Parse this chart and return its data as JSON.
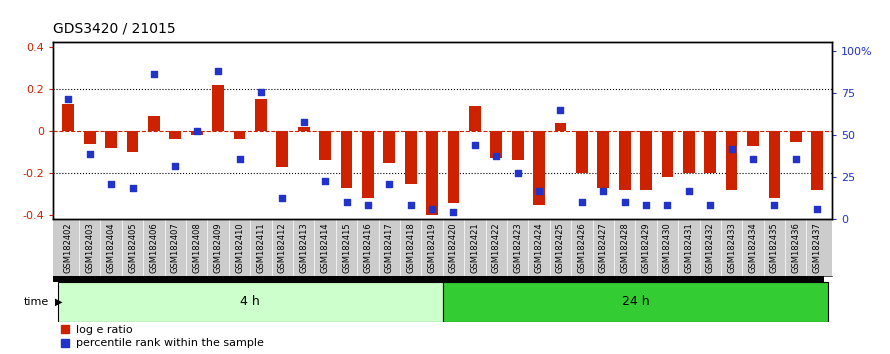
{
  "title": "GDS3420 / 21015",
  "samples": [
    "GSM182402",
    "GSM182403",
    "GSM182404",
    "GSM182405",
    "GSM182406",
    "GSM182407",
    "GSM182408",
    "GSM182409",
    "GSM182410",
    "GSM182411",
    "GSM182412",
    "GSM182413",
    "GSM182414",
    "GSM182415",
    "GSM182416",
    "GSM182417",
    "GSM182418",
    "GSM182419",
    "GSM182420",
    "GSM182421",
    "GSM182422",
    "GSM182423",
    "GSM182424",
    "GSM182425",
    "GSM182426",
    "GSM182427",
    "GSM182428",
    "GSM182429",
    "GSM182430",
    "GSM182431",
    "GSM182432",
    "GSM182433",
    "GSM182434",
    "GSM182435",
    "GSM182436",
    "GSM182437"
  ],
  "log_e_ratio": [
    0.13,
    -0.06,
    -0.08,
    -0.1,
    0.07,
    -0.04,
    -0.02,
    0.22,
    -0.04,
    0.15,
    -0.17,
    0.02,
    -0.14,
    -0.27,
    -0.32,
    -0.15,
    -0.25,
    -0.4,
    -0.34,
    0.12,
    -0.13,
    -0.14,
    -0.35,
    0.04,
    -0.2,
    -0.27,
    -0.28,
    -0.28,
    -0.22,
    -0.2,
    -0.2,
    -0.28,
    -0.07,
    -0.32,
    -0.05,
    -0.28
  ],
  "percentile_rank": [
    68,
    37,
    20,
    18,
    82,
    30,
    50,
    84,
    34,
    72,
    12,
    55,
    22,
    10,
    8,
    20,
    8,
    6,
    4,
    42,
    36,
    26,
    16,
    62,
    10,
    16,
    10,
    8,
    8,
    16,
    8,
    40,
    34,
    8,
    34,
    6
  ],
  "group1_count": 18,
  "group1_label": "4 h",
  "group2_label": "24 h",
  "time_label": "time",
  "bar_color": "#cc2200",
  "dot_color": "#2233cc",
  "legend_log": "log e ratio",
  "legend_pct": "percentile rank within the sample",
  "group1_bg": "#ccffcc",
  "group2_bg": "#33cc33",
  "xticklabel_bg": "#cccccc",
  "ylim_left": [
    -0.42,
    0.42
  ],
  "yticks_left": [
    -0.4,
    -0.2,
    0.0,
    0.2,
    0.4
  ],
  "ytick_labels_left": [
    "-0.4",
    "-0.2",
    "0",
    "0.2",
    "0.4"
  ],
  "ytick_labels_right": [
    "0",
    "25",
    "50",
    "75",
    "100%"
  ]
}
